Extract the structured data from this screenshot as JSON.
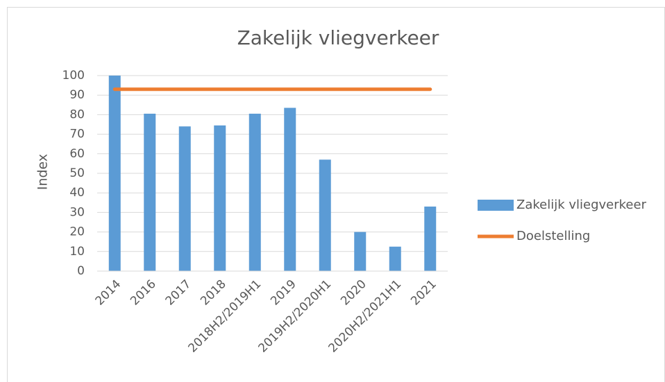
{
  "chart_data": {
    "type": "bar",
    "title": "Zakelijk vliegverkeer",
    "y_label": "Index",
    "categories": [
      "2014",
      "2016",
      "2017",
      "2018",
      "2018H2/2019H1",
      "2019",
      "2019H2/2020H1",
      "2020",
      "2020H2/2021H1",
      "2021"
    ],
    "series": [
      {
        "name": "Zakelijk vliegverkeer",
        "type": "bar",
        "color": "#5b9bd5",
        "values": [
          100,
          80.5,
          74,
          74.5,
          80.5,
          83.5,
          57,
          20,
          12.5,
          33
        ]
      },
      {
        "name": "Doelstelling",
        "type": "line",
        "color": "#ed7d31",
        "values": [
          93,
          93,
          93,
          93,
          93,
          93,
          93,
          93,
          93,
          93
        ]
      }
    ],
    "ylim": [
      0,
      100
    ],
    "yticks": [
      0,
      10,
      20,
      30,
      40,
      50,
      60,
      70,
      80,
      90,
      100
    ],
    "grid": true,
    "legend": "right"
  }
}
